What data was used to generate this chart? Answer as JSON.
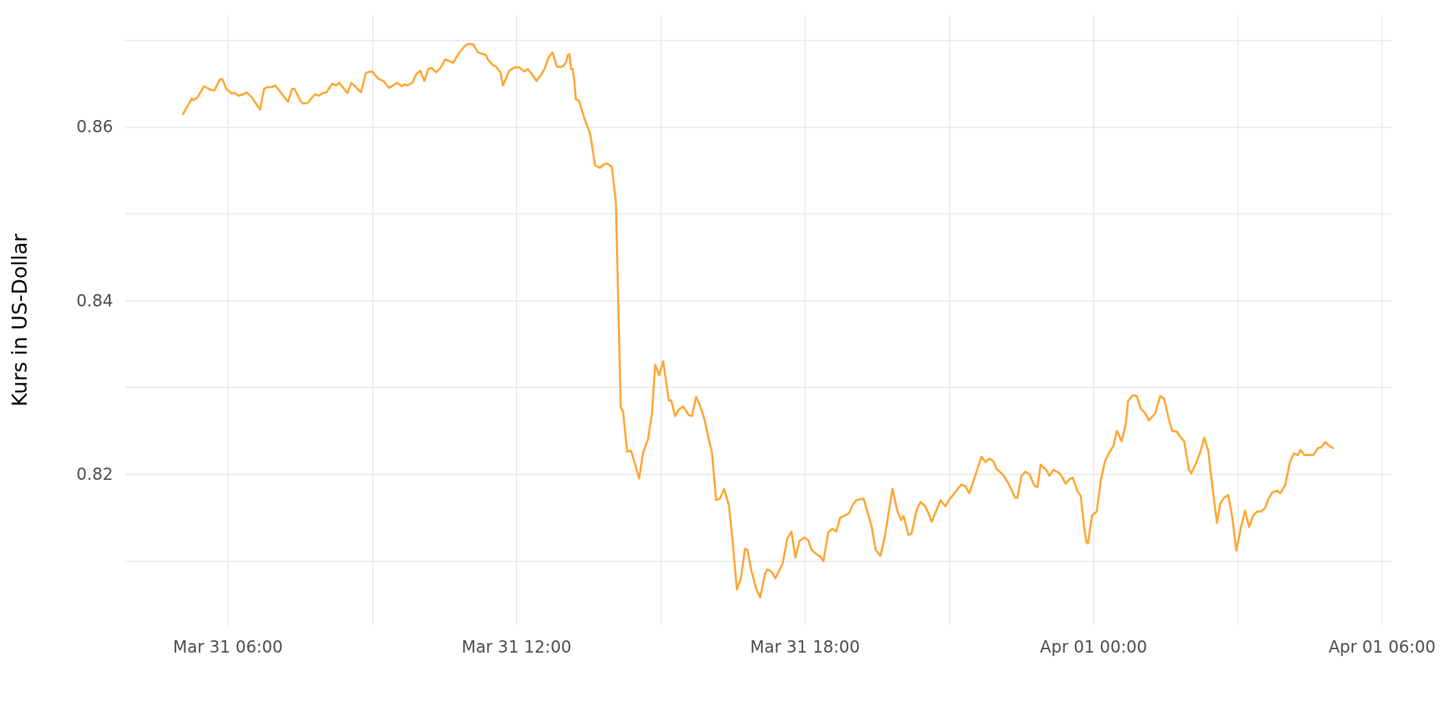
{
  "chart_data": {
    "type": "line",
    "ylabel": "Kurs in US-Dollar",
    "grid": true,
    "marker": "none",
    "line_style": "solid",
    "xlim": [
      "--03-31T03:52",
      "--04-01T06:11"
    ],
    "ylim": [
      0.8026,
      0.8729
    ],
    "xticks": [
      {
        "value": "--03-31T06:00",
        "label": "Mar 31 06:00"
      },
      {
        "value": "--03-31T09:00",
        "label": null
      },
      {
        "value": "--03-31T12:00",
        "label": "Mar 31 12:00"
      },
      {
        "value": "--03-31T15:00",
        "label": null
      },
      {
        "value": "--03-31T18:00",
        "label": "Mar 31 18:00"
      },
      {
        "value": "--03-31T21:00",
        "label": null
      },
      {
        "value": "--04-01T00:00",
        "label": "Apr 01 00:00"
      },
      {
        "value": "--04-01T03:00",
        "label": null
      },
      {
        "value": "--04-01T06:00",
        "label": "Apr 01 06:00"
      }
    ],
    "yticks": [
      {
        "value": 0.81,
        "label": null
      },
      0.82,
      {
        "value": 0.83,
        "label": null
      },
      0.84,
      {
        "value": 0.85,
        "label": null
      },
      0.86,
      {
        "value": 0.87,
        "label": null
      }
    ],
    "series": [
      {
        "color": "#ffa533",
        "x": [
          "--03-31T05:04",
          "--03-31T05:10",
          "--03-31T05:15",
          "--03-31T05:17",
          "--03-31T05:22",
          "--03-31T05:30",
          "--03-31T05:38",
          "--03-31T05:43",
          "--03-31T05:50",
          "--03-31T05:53",
          "--03-31T05:58",
          "--03-31T06:04",
          "--03-31T06:09",
          "--03-31T06:13",
          "--03-31T06:20",
          "--03-31T06:23",
          "--03-31T06:29",
          "--03-31T06:35",
          "--03-31T06:40",
          "--03-31T06:45",
          "--03-31T06:49",
          "--03-31T06:55",
          "--03-31T06:59",
          "--03-31T07:04",
          "--03-31T07:15",
          "--03-31T07:20",
          "--03-31T07:23",
          "--03-31T07:31",
          "--03-31T07:34",
          "--03-31T07:40",
          "--03-31T07:44",
          "--03-31T07:49",
          "--03-31T07:53",
          "--03-31T07:58",
          "--03-31T08:03",
          "--03-31T08:10",
          "--03-31T08:15",
          "--03-31T08:19",
          "--03-31T08:29",
          "--03-31T08:34",
          "--03-31T08:46",
          "--03-31T08:52",
          "--03-31T08:54",
          "--03-31T09:00",
          "--03-31T09:07",
          "--03-31T09:14",
          "--03-31T09:21",
          "--03-31T09:26",
          "--03-31T09:31",
          "--03-31T09:37",
          "--03-31T09:40",
          "--03-31T09:44",
          "--03-31T09:50",
          "--03-31T09:55",
          "--03-31T10:00",
          "--03-31T10:05",
          "--03-31T10:10",
          "--03-31T10:14",
          "--03-31T10:20",
          "--03-31T10:25",
          "--03-31T10:31",
          "--03-31T10:41",
          "--03-31T10:48",
          "--03-31T10:55",
          "--03-31T11:01",
          "--03-31T11:06",
          "--03-31T11:12",
          "--03-31T11:15",
          "--03-31T11:22",
          "--03-31T11:24",
          "--03-31T11:31",
          "--03-31T11:34",
          "--03-31T11:40",
          "--03-31T11:43",
          "--03-31T11:51",
          "--03-31T11:58",
          "--03-31T12:03",
          "--03-31T12:10",
          "--03-31T12:14",
          "--03-31T12:19",
          "--03-31T12:25",
          "--03-31T12:29",
          "--03-31T12:35",
          "--03-31T12:40",
          "--03-31T12:45",
          "--03-31T12:50",
          "--03-31T12:55",
          "--03-31T12:59",
          "--03-31T13:02",
          "--03-31T13:04",
          "--03-31T13:06",
          "--03-31T13:08",
          "--03-31T13:10",
          "--03-31T13:12",
          "--03-31T13:14",
          "--03-31T13:18",
          "--03-31T13:24",
          "--03-31T13:32",
          "--03-31T13:38",
          "--03-31T13:44",
          "--03-31T13:49",
          "--03-31T13:53",
          "--03-31T13:59",
          "--03-31T14:04",
          "--03-31T14:10",
          "--03-31T14:13",
          "--03-31T14:18",
          "--03-31T14:23",
          "--03-31T14:29",
          "--03-31T14:33",
          "--03-31T14:38",
          "--03-31T14:44",
          "--03-31T14:49",
          "--03-31T14:53",
          "--03-31T14:58",
          "--03-31T15:03",
          "--03-31T15:10",
          "--03-31T15:13",
          "--03-31T15:18",
          "--03-31T15:23",
          "--03-31T15:28",
          "--03-31T15:35",
          "--03-31T15:39",
          "--03-31T15:44",
          "--03-31T15:49",
          "--03-31T15:54",
          "--03-31T15:59",
          "--03-31T16:04",
          "--03-31T16:09",
          "--03-31T16:14",
          "--03-31T16:19",
          "--03-31T16:25",
          "--03-31T16:29",
          "--03-31T16:35",
          "--03-31T16:40",
          "--03-31T16:45",
          "--03-31T16:48",
          "--03-31T16:53",
          "--03-31T16:59",
          "--03-31T17:04",
          "--03-31T17:10",
          "--03-31T17:13",
          "--03-31T17:18",
          "--03-31T17:23",
          "--03-31T17:32",
          "--03-31T17:38",
          "--03-31T17:43",
          "--03-31T17:48",
          "--03-31T17:53",
          "--03-31T17:59",
          "--03-31T18:04",
          "--03-31T18:08",
          "--03-31T18:14",
          "--03-31T18:19",
          "--03-31T18:23",
          "--03-31T18:29",
          "--03-31T18:34",
          "--03-31T18:39",
          "--03-31T18:44",
          "--03-31T18:49",
          "--03-31T18:55",
          "--03-31T18:59",
          "--03-31T19:04",
          "--03-31T19:13",
          "--03-31T19:23",
          "--03-31T19:28",
          "--03-31T19:34",
          "--03-31T19:39",
          "--03-31T19:49",
          "--03-31T19:55",
          "--03-31T20:00",
          "--03-31T20:03",
          "--03-31T20:09",
          "--03-31T20:13",
          "--03-31T20:19",
          "--03-31T20:24",
          "--03-31T20:30",
          "--03-31T20:34",
          "--03-31T20:38",
          "--03-31T20:49",
          "--03-31T20:55",
          "--03-31T21:01",
          "--03-31T21:08",
          "--03-31T21:15",
          "--03-31T21:20",
          "--03-31T21:25",
          "--03-31T21:33",
          "--03-31T21:40",
          "--03-31T21:45",
          "--03-31T21:50",
          "--03-31T21:55",
          "--03-31T21:59",
          "--03-31T22:05",
          "--03-31T22:08",
          "--03-31T22:14",
          "--03-31T22:22",
          "--03-31T22:25",
          "--03-31T22:30",
          "--03-31T22:35",
          "--03-31T22:40",
          "--03-31T22:46",
          "--03-31T22:50",
          "--03-31T22:54",
          "--03-31T23:01",
          "--03-31T23:05",
          "--03-31T23:10",
          "--03-31T23:16",
          "--03-31T23:20",
          "--03-31T23:25",
          "--03-31T23:31",
          "--03-31T23:34",
          "--03-31T23:40",
          "--03-31T23:44",
          "--03-31T23:48",
          "--03-31T23:51",
          "--03-31T23:53",
          "--03-31T23:58",
          "--04-01T00:04",
          "--04-01T00:09",
          "--04-01T00:14",
          "--04-01T00:19",
          "--04-01T00:25",
          "--04-01T00:29",
          "--04-01T00:35",
          "--04-01T00:40",
          "--04-01T00:43",
          "--04-01T00:49",
          "--04-01T00:54",
          "--04-01T00:59",
          "--04-01T01:04",
          "--04-01T01:09",
          "--04-01T01:17",
          "--04-01T01:23",
          "--04-01T01:28",
          "--04-01T01:34",
          "--04-01T01:38",
          "--04-01T01:44",
          "--04-01T01:49",
          "--04-01T01:53",
          "--04-01T01:59",
          "--04-01T02:02",
          "--04-01T02:08",
          "--04-01T02:13",
          "--04-01T02:18",
          "--04-01T02:23",
          "--04-01T02:29",
          "--04-01T02:34",
          "--04-01T02:38",
          "--04-01T02:43",
          "--04-01T02:48",
          "--04-01T02:53",
          "--04-01T02:58",
          "--04-01T03:04",
          "--04-01T03:09",
          "--04-01T03:14",
          "--04-01T03:19",
          "--04-01T03:24",
          "--04-01T03:29",
          "--04-01T03:34",
          "--04-01T03:38",
          "--04-01T03:43",
          "--04-01T03:49",
          "--04-01T03:53",
          "--04-01T03:59",
          "--04-01T04:05",
          "--04-01T04:10",
          "--04-01T04:15",
          "--04-01T04:18",
          "--04-01T04:23",
          "--04-01T04:34",
          "--04-01T04:40",
          "--04-01T04:44",
          "--04-01T04:49",
          "--04-01T04:55",
          "--04-01T04:59"
        ],
        "values": [
          0.8615,
          0.8625,
          0.8633,
          0.8631,
          0.8634,
          0.8647,
          0.8643,
          0.8642,
          0.8655,
          0.8655,
          0.8644,
          0.8639,
          0.8639,
          0.8636,
          0.8638,
          0.864,
          0.8635,
          0.8627,
          0.862,
          0.8644,
          0.8646,
          0.8646,
          0.8648,
          0.8642,
          0.8629,
          0.8644,
          0.8644,
          0.8629,
          0.8627,
          0.8628,
          0.8633,
          0.8638,
          0.8636,
          0.8639,
          0.864,
          0.865,
          0.8648,
          0.8651,
          0.8639,
          0.8651,
          0.864,
          0.8662,
          0.8663,
          0.8664,
          0.8656,
          0.8653,
          0.8645,
          0.8648,
          0.8651,
          0.8647,
          0.8649,
          0.8648,
          0.8651,
          0.8661,
          0.8665,
          0.8653,
          0.8667,
          0.8668,
          0.8663,
          0.8668,
          0.8678,
          0.8674,
          0.8685,
          0.8693,
          0.8696,
          0.8695,
          0.8686,
          0.8685,
          0.8683,
          0.8678,
          0.8671,
          0.867,
          0.8663,
          0.8648,
          0.8665,
          0.8669,
          0.8669,
          0.8664,
          0.8667,
          0.8661,
          0.8653,
          0.8658,
          0.8667,
          0.868,
          0.8686,
          0.867,
          0.8669,
          0.8671,
          0.8675,
          0.8683,
          0.8684,
          0.8667,
          0.8667,
          0.8655,
          0.8632,
          0.863,
          0.8612,
          0.8592,
          0.8556,
          0.8553,
          0.8557,
          0.8558,
          0.8554,
          0.8513,
          0.8277,
          0.8272,
          0.8226,
          0.8227,
          0.8208,
          0.8195,
          0.8225,
          0.824,
          0.827,
          0.8326,
          0.8314,
          0.833,
          0.8285,
          0.8285,
          0.8267,
          0.8275,
          0.8278,
          0.8268,
          0.8267,
          0.8289,
          0.8279,
          0.8265,
          0.8244,
          0.8224,
          0.817,
          0.8172,
          0.8183,
          0.8164,
          0.8129,
          0.8067,
          0.808,
          0.8114,
          0.8113,
          0.8089,
          0.8068,
          0.8058,
          0.8085,
          0.809,
          0.8088,
          0.808,
          0.8097,
          0.8126,
          0.8134,
          0.8104,
          0.8123,
          0.8127,
          0.8124,
          0.8113,
          0.8108,
          0.8105,
          0.81,
          0.8133,
          0.8137,
          0.8134,
          0.815,
          0.8152,
          0.8155,
          0.8164,
          0.817,
          0.8172,
          0.814,
          0.8113,
          0.8106,
          0.8125,
          0.8183,
          0.8158,
          0.8147,
          0.8152,
          0.813,
          0.8132,
          0.8158,
          0.8168,
          0.8163,
          0.8155,
          0.8145,
          0.817,
          0.8163,
          0.8172,
          0.818,
          0.8188,
          0.8186,
          0.8178,
          0.82,
          0.822,
          0.8214,
          0.8218,
          0.8215,
          0.8206,
          0.8201,
          0.8198,
          0.8189,
          0.8173,
          0.8173,
          0.8198,
          0.8203,
          0.82,
          0.8187,
          0.8185,
          0.8211,
          0.8205,
          0.8198,
          0.8205,
          0.8202,
          0.8198,
          0.8189,
          0.8195,
          0.8196,
          0.818,
          0.8175,
          0.8141,
          0.8122,
          0.812,
          0.8152,
          0.8157,
          0.8193,
          0.8214,
          0.8224,
          0.8233,
          0.825,
          0.8238,
          0.8257,
          0.8284,
          0.8291,
          0.829,
          0.8275,
          0.8271,
          0.8262,
          0.827,
          0.829,
          0.8287,
          0.8263,
          0.825,
          0.8249,
          0.8242,
          0.8238,
          0.8205,
          0.8201,
          0.8213,
          0.8225,
          0.8242,
          0.8227,
          0.818,
          0.8144,
          0.8166,
          0.8173,
          0.8176,
          0.8151,
          0.8112,
          0.8139,
          0.8158,
          0.8139,
          0.8152,
          0.8157,
          0.8157,
          0.8161,
          0.8171,
          0.8179,
          0.8181,
          0.8178,
          0.8187,
          0.8214,
          0.8224,
          0.8222,
          0.8228,
          0.8222,
          0.8222,
          0.823,
          0.8231,
          0.8237,
          0.8232,
          0.823
        ]
      }
    ]
  }
}
